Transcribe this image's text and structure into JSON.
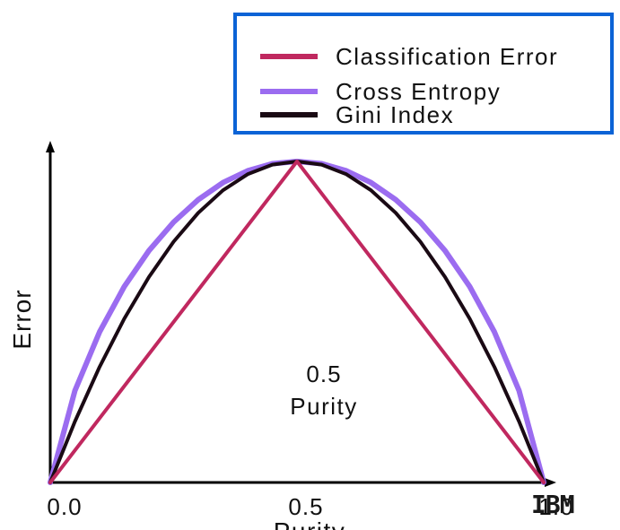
{
  "chart_data": {
    "type": "line",
    "xlabel": "Purity",
    "ylabel": "Error",
    "x_ticks": [
      "0.0",
      "0.5",
      "1.0"
    ],
    "annotation": {
      "value": "0.5",
      "label": "Purity"
    },
    "xlim": [
      0,
      1
    ],
    "ylim": [
      0,
      1
    ],
    "grid": false,
    "legend_position": "top-right",
    "series": [
      {
        "name": "Classification Error",
        "color": "#c0285f",
        "x": [
          0,
          0.5,
          1
        ],
        "y": [
          0,
          1,
          0
        ]
      },
      {
        "name": "Cross Entropy",
        "color": "#9b6cf0",
        "x": [
          0,
          0.05,
          0.1,
          0.15,
          0.2,
          0.25,
          0.3,
          0.35,
          0.4,
          0.45,
          0.5,
          0.55,
          0.6,
          0.65,
          0.7,
          0.75,
          0.8,
          0.85,
          0.9,
          0.95,
          1
        ],
        "y": [
          0,
          0.286,
          0.469,
          0.61,
          0.722,
          0.811,
          0.881,
          0.934,
          0.971,
          0.993,
          1,
          0.993,
          0.971,
          0.934,
          0.881,
          0.811,
          0.722,
          0.61,
          0.469,
          0.286,
          0
        ]
      },
      {
        "name": "Gini Index",
        "color": "#1a0a14",
        "x": [
          0,
          0.05,
          0.1,
          0.15,
          0.2,
          0.25,
          0.3,
          0.35,
          0.4,
          0.45,
          0.5,
          0.55,
          0.6,
          0.65,
          0.7,
          0.75,
          0.8,
          0.85,
          0.9,
          0.95,
          1
        ],
        "y": [
          0,
          0.19,
          0.36,
          0.51,
          0.64,
          0.75,
          0.84,
          0.91,
          0.96,
          0.99,
          1,
          0.99,
          0.96,
          0.91,
          0.84,
          0.75,
          0.64,
          0.51,
          0.36,
          0.19,
          0
        ]
      }
    ]
  },
  "logo": "IBM"
}
